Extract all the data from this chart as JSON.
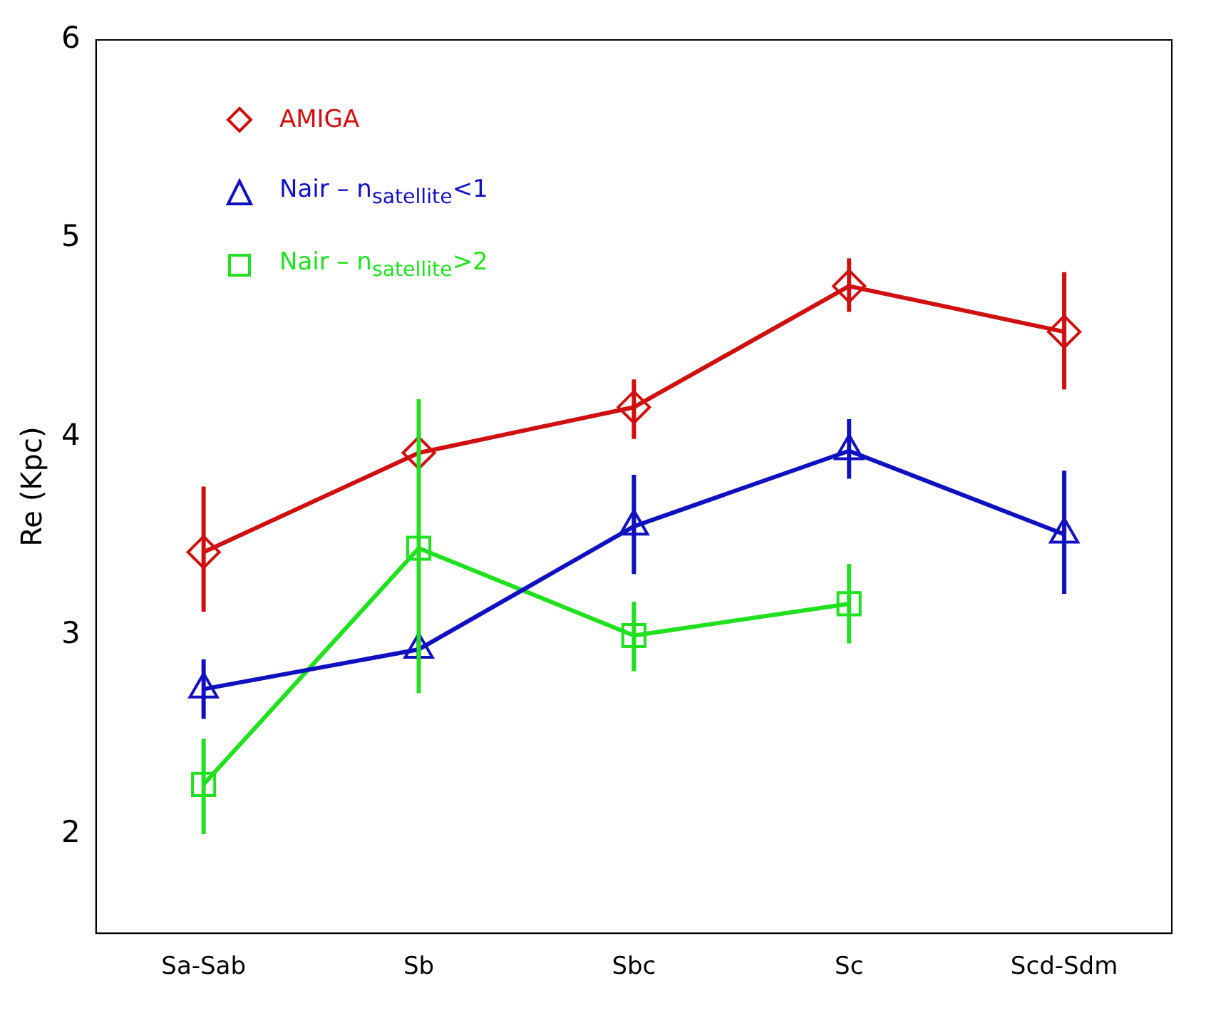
{
  "chart_data": {
    "type": "line",
    "ylabel": "Re (Kpc)",
    "categories": [
      "Sa-Sab",
      "Sb",
      "Sbc",
      "Sc",
      "Scd-Sdm"
    ],
    "ylim": [
      1.5,
      6
    ],
    "yticks": [
      2,
      3,
      4,
      5,
      6
    ],
    "grid": false,
    "legend": "top left",
    "line_style": "solid",
    "series": [
      {
        "name": "AMIGA",
        "color": "#d01010",
        "marker": "diamond",
        "values": [
          3.42,
          3.92,
          4.15,
          4.76,
          4.53
        ],
        "errors": [
          [
            3.12,
            3.75
          ],
          null,
          [
            3.99,
            4.29
          ],
          [
            4.63,
            4.9
          ],
          [
            4.24,
            4.83
          ]
        ]
      },
      {
        "name": "Nair – n$_{satellite}$<1",
        "color": "#1010c0",
        "marker": "triangle",
        "values": [
          2.73,
          2.93,
          3.55,
          3.93,
          3.51
        ],
        "errors": [
          [
            2.58,
            2.88
          ],
          [
            2.88,
            2.98
          ],
          [
            3.31,
            3.81
          ],
          [
            3.79,
            4.09
          ],
          [
            3.21,
            3.83
          ]
        ]
      },
      {
        "name": "Nair – n$_{satellite}$>2",
        "color": "#20e020",
        "marker": "square",
        "values": [
          2.25,
          3.44,
          3.0,
          3.16,
          null
        ],
        "errors": [
          [
            2.0,
            2.48
          ],
          [
            2.71,
            4.19
          ],
          [
            2.82,
            3.17
          ],
          [
            2.96,
            3.36
          ],
          null
        ]
      }
    ]
  }
}
